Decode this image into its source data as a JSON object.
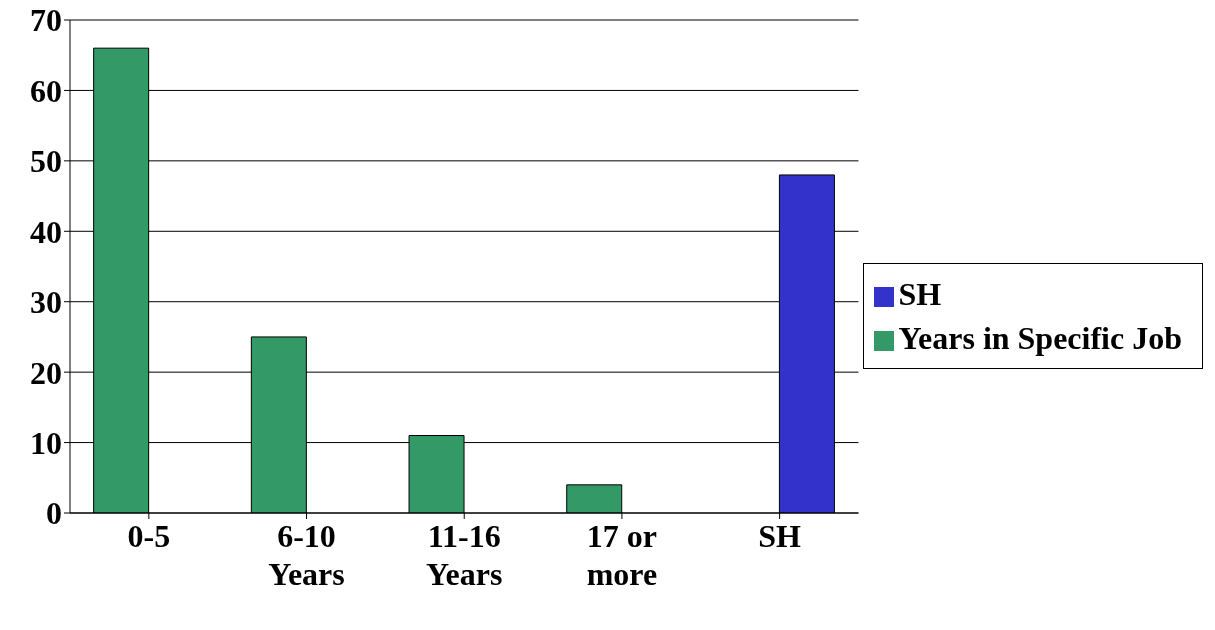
{
  "chart_data": {
    "type": "bar",
    "categories": [
      "0-5",
      "6-10 Years",
      "11-16 Years",
      "17 or more",
      "SH"
    ],
    "series": [
      {
        "name": "Years in Specific Job",
        "color": "#339966",
        "values": [
          66,
          25,
          11,
          4,
          null
        ]
      },
      {
        "name": "SH",
        "color": "#3333cc",
        "values": [
          null,
          null,
          null,
          null,
          48
        ]
      }
    ],
    "ylim": [
      0,
      70
    ],
    "yticks": [
      0,
      10,
      20,
      30,
      40,
      50,
      60,
      70
    ],
    "grid": "y",
    "legend": "right"
  }
}
